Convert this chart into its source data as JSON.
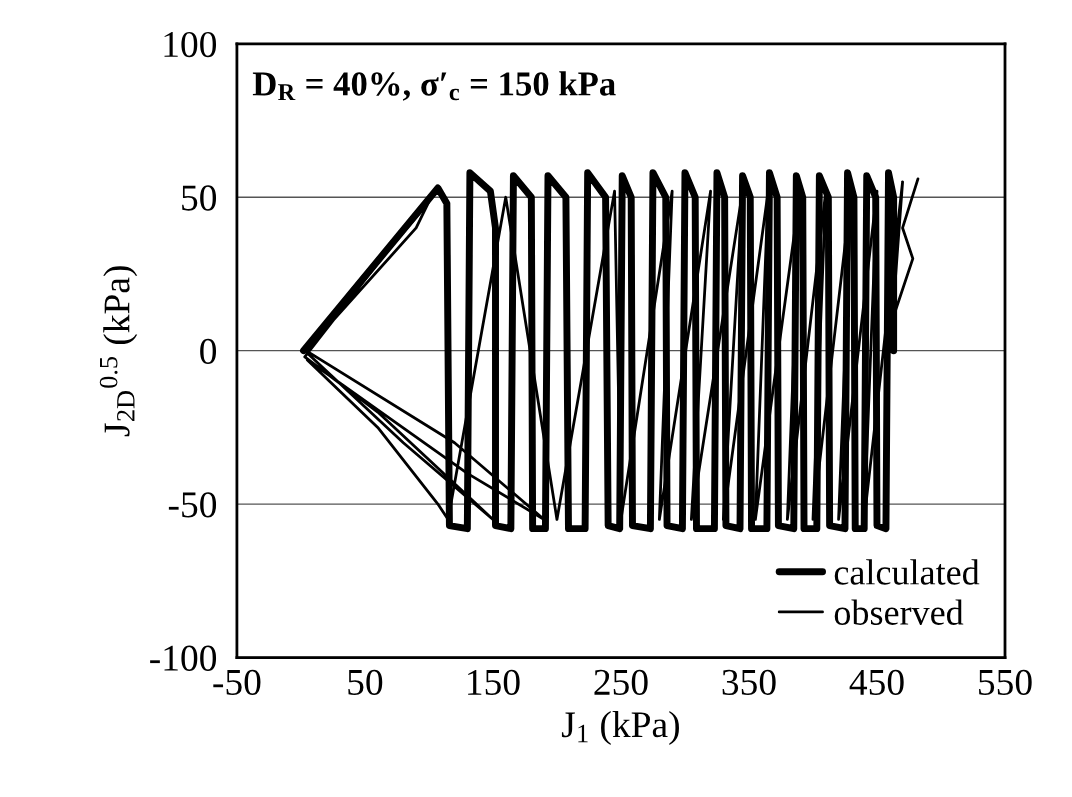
{
  "chart_data": {
    "type": "line",
    "xlabel": "J$_{1}$ (kPa)",
    "ylabel": "J$_{2D}$$^{0.5}$ (kPa)",
    "annotations": [
      "D$_{R}$ = 40%, σ′$_{c}$ = 150 kPa"
    ],
    "xlim": [
      -50,
      550
    ],
    "xticks": [
      -50,
      50,
      150,
      250,
      350,
      450,
      550
    ],
    "ylim": [
      -100,
      100
    ],
    "yticks": [
      -100,
      -50,
      0,
      50,
      100
    ],
    "grid": "y",
    "legend": "bottom right",
    "marker": "none",
    "line_style": "solid",
    "series": [
      {
        "name": "calculated",
        "color": "#000000",
        "x": [
          2,
          107,
          114,
          116,
          130,
          132,
          148,
          152,
          152,
          164,
          166,
          180,
          181,
          191,
          193,
          207,
          209,
          222,
          224,
          238,
          240,
          249,
          251,
          258,
          259,
          273,
          275,
          285,
          286,
          298,
          300,
          308,
          309,
          323,
          325,
          331,
          332,
          343,
          345,
          351,
          352,
          364,
          366,
          372,
          373,
          385,
          387,
          392,
          393,
          403,
          405,
          412,
          413,
          425,
          427,
          432,
          433,
          440,
          442,
          449,
          450,
          457,
          459,
          463,
          463
        ],
        "values": [
          0,
          53,
          48,
          -57,
          -58,
          58,
          52,
          40,
          -57,
          -58,
          57,
          50,
          -58,
          -58,
          57,
          50,
          -58,
          -58,
          58,
          50,
          -57,
          -58,
          57,
          50,
          -57,
          -58,
          58,
          50,
          -57,
          -58,
          58,
          50,
          -58,
          -58,
          58,
          50,
          -57,
          -58,
          57,
          50,
          -58,
          -58,
          58,
          50,
          -57,
          -58,
          57,
          50,
          -58,
          -58,
          57,
          50,
          -57,
          -58,
          58,
          50,
          -58,
          -58,
          57,
          50,
          -57,
          -58,
          58,
          50,
          0
        ]
      },
      {
        "name": "observed",
        "color": "#000000",
        "x": [
          2,
          95,
          100,
          40,
          3,
          80,
          150,
          60,
          3,
          104,
          90,
          4,
          120,
          190,
          130,
          5,
          60,
          107,
          115,
          160,
          200,
          245,
          250,
          290,
          280,
          320,
          305,
          345,
          330,
          365,
          355,
          390,
          380,
          410,
          400,
          430,
          420,
          450,
          440,
          470,
          462,
          478,
          470,
          482
        ],
        "values": [
          0,
          46,
          50,
          20,
          0,
          -30,
          -55,
          -20,
          -2,
          52,
          40,
          0,
          -30,
          -55,
          -40,
          -3,
          -25,
          -50,
          -55,
          50,
          -55,
          52,
          -55,
          52,
          -55,
          52,
          -55,
          52,
          -55,
          52,
          -55,
          52,
          -55,
          52,
          -55,
          52,
          -55,
          52,
          -55,
          55,
          10,
          30,
          40,
          56
        ]
      }
    ]
  }
}
